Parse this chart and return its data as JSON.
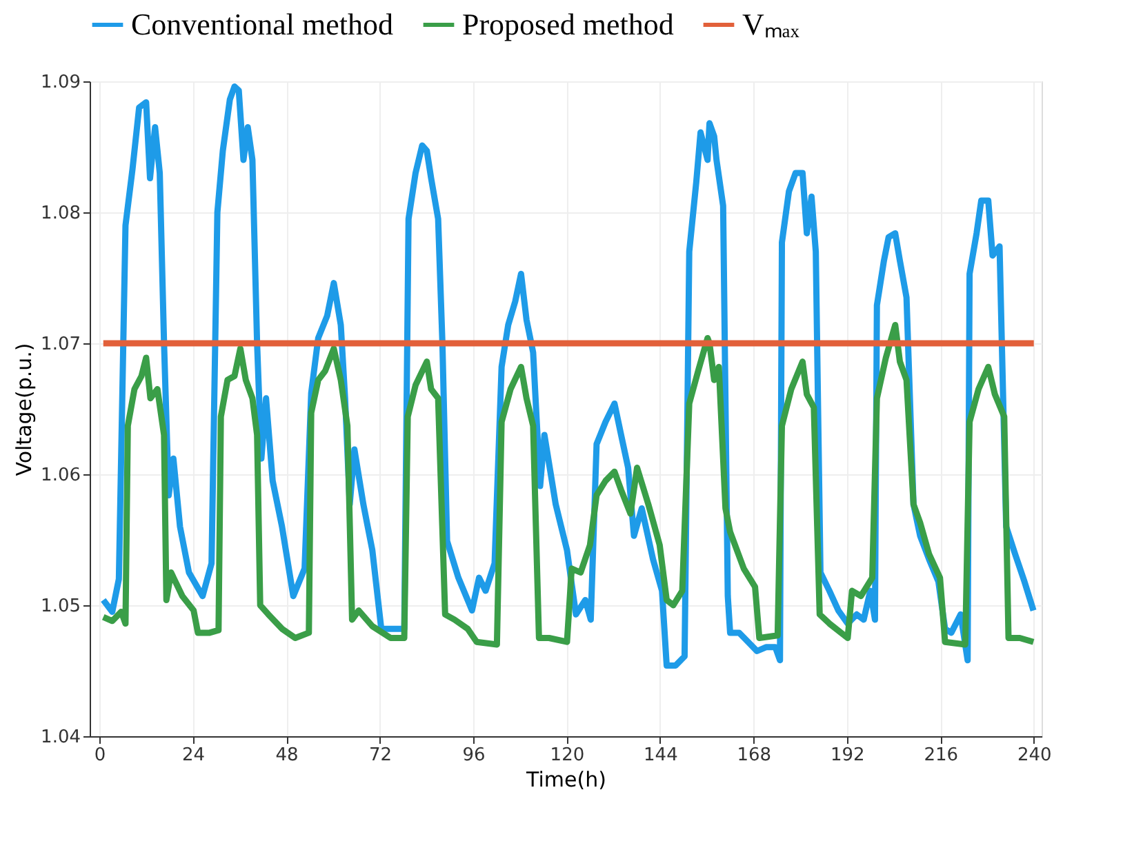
{
  "chart_data": {
    "type": "line",
    "xlabel": "Time(h)",
    "ylabel": "Voltage(p.u.)",
    "xlim": [
      -2.5,
      242
    ],
    "xticks": [
      0,
      24,
      48,
      72,
      96,
      120,
      144,
      168,
      192,
      216,
      240
    ],
    "ylim": [
      1.04,
      1.09
    ],
    "yticks": [
      1.04,
      1.05,
      1.06,
      1.07,
      1.08,
      1.09
    ],
    "grid": true,
    "legend": "top",
    "marker": "none",
    "line_style": "solid",
    "series": [
      {
        "name": "Conventional method",
        "color": "#1e9be8",
        "x": [
          1,
          3.3,
          5,
          6.7,
          8.5,
          10.2,
          12,
          13,
          14.3,
          15.5,
          16.6,
          17.8,
          19,
          20.7,
          23,
          26.5,
          28.8,
          30.3,
          31.7,
          33.5,
          34.7,
          35.8,
          37,
          38.1,
          39.3,
          40.5,
          41.6,
          42.8,
          44.5,
          46.9,
          49.8,
          52.7,
          54.4,
          56.2,
          58.5,
          60.2,
          62,
          63.1,
          64.3,
          65.5,
          67.8,
          70.1,
          72.4,
          75.9,
          78.3,
          79.4,
          81.2,
          82.9,
          84.1,
          85.2,
          87,
          88.1,
          89.3,
          92.2,
          95.7,
          97.5,
          99.2,
          101.5,
          103.3,
          105,
          106.8,
          108.3,
          109.7,
          111.4,
          113.2,
          114.3,
          117.2,
          120.1,
          122.4,
          124.8,
          126.2,
          127.7,
          130,
          132.3,
          134,
          135.8,
          137.3,
          139.3,
          142.2,
          144.5,
          145.7,
          148,
          150.3,
          151.5,
          153.3,
          154.4,
          156.2,
          156.7,
          157.9,
          158.5,
          160.2,
          161.4,
          162,
          164.3,
          166.6,
          168.9,
          171.2,
          173.6,
          174.8,
          175.3,
          177.1,
          178.8,
          180.6,
          181.7,
          182.9,
          184,
          185.2,
          187.5,
          189.8,
          192.2,
          194.5,
          196.3,
          198,
          199.2,
          199.7,
          201.5,
          202.7,
          204.4,
          205.6,
          207.3,
          209.1,
          210.8,
          213.1,
          215.5,
          217.2,
          218.8,
          221.2,
          223,
          223.5,
          225.3,
          226.5,
          228.3,
          229.4,
          231.2,
          232.9,
          235.2,
          237.6,
          239.9
        ],
        "values": [
          1.0504,
          1.0495,
          1.052,
          1.079,
          1.0833,
          1.088,
          1.0884,
          1.0826,
          1.0865,
          1.083,
          1.07,
          1.0584,
          1.0612,
          1.056,
          1.0525,
          1.0507,
          1.0532,
          1.08,
          1.0847,
          1.0886,
          1.0896,
          1.0893,
          1.084,
          1.0865,
          1.084,
          1.07,
          1.0612,
          1.0658,
          1.0595,
          1.056,
          1.0507,
          1.0528,
          1.0662,
          1.0704,
          1.0721,
          1.0746,
          1.0714,
          1.0658,
          1.0577,
          1.0619,
          1.0577,
          1.0542,
          1.0482,
          1.0482,
          1.0482,
          1.0795,
          1.083,
          1.0851,
          1.0847,
          1.0826,
          1.0795,
          1.07,
          1.0549,
          1.0521,
          1.0496,
          1.0521,
          1.0511,
          1.0532,
          1.0682,
          1.0714,
          1.0732,
          1.0753,
          1.0718,
          1.0693,
          1.0591,
          1.063,
          1.0577,
          1.0542,
          1.0493,
          1.0504,
          1.0489,
          1.0623,
          1.064,
          1.0654,
          1.063,
          1.0605,
          1.0553,
          1.0574,
          1.0535,
          1.0511,
          1.0454,
          1.0454,
          1.0461,
          1.077,
          1.0823,
          1.0861,
          1.084,
          1.0868,
          1.0858,
          1.084,
          1.0805,
          1.0507,
          1.0479,
          1.0479,
          1.0472,
          1.0465,
          1.0468,
          1.0468,
          1.0458,
          1.0777,
          1.0816,
          1.083,
          1.083,
          1.0784,
          1.0812,
          1.077,
          1.0525,
          1.0511,
          1.0496,
          1.0486,
          1.0493,
          1.0489,
          1.0511,
          1.0489,
          1.0729,
          1.0763,
          1.0781,
          1.0784,
          1.0763,
          1.0735,
          1.0577,
          1.0553,
          1.0535,
          1.0518,
          1.0482,
          1.0479,
          1.0493,
          1.0458,
          1.0753,
          1.0784,
          1.0809,
          1.0809,
          1.0767,
          1.0774,
          1.056,
          1.0539,
          1.0518,
          1.0496
        ]
      },
      {
        "name": "Proposed method",
        "color": "#3a9e48",
        "x": [
          1,
          3.3,
          5.6,
          6.7,
          7.3,
          9,
          10.8,
          12,
          13.1,
          14.9,
          16.6,
          17.2,
          18.4,
          21.3,
          24.2,
          25.3,
          28.3,
          30.6,
          31.2,
          32.9,
          34.7,
          36.2,
          37.6,
          39.3,
          40.5,
          41.3,
          43.4,
          46.9,
          50.3,
          53.8,
          54.4,
          56.2,
          58,
          60.2,
          62,
          63.7,
          64.9,
          66.6,
          70.1,
          74.8,
          78.3,
          79.2,
          81.2,
          84.1,
          85.2,
          87,
          88.8,
          91.2,
          94.6,
          96.9,
          102.1,
          103.3,
          105.6,
          108.3,
          109.7,
          111.4,
          112.9,
          115.5,
          120.1,
          121.3,
          123.6,
          126,
          127.7,
          130,
          132.3,
          134,
          136.4,
          138.1,
          141,
          143.9,
          145.7,
          147.4,
          149.7,
          151.5,
          153.8,
          156.2,
          156.7,
          157.9,
          159.1,
          160.8,
          162,
          165.5,
          168.4,
          169.5,
          174.2,
          175.3,
          177.7,
          180.6,
          181.7,
          183.5,
          185,
          187.5,
          192.2,
          193.3,
          195.6,
          198.5,
          199.7,
          202,
          204.4,
          205.6,
          207.3,
          209.1,
          210.8,
          213.1,
          215.9,
          217.2,
          222.4,
          223.5,
          225.8,
          228.3,
          230,
          232.4,
          233.5,
          236.4,
          239.9
        ],
        "values": [
          1.0491,
          1.0488,
          1.0495,
          1.0486,
          1.0637,
          1.0665,
          1.0675,
          1.0689,
          1.0658,
          1.0665,
          1.063,
          1.0504,
          1.0525,
          1.0507,
          1.0496,
          1.0479,
          1.0479,
          1.0481,
          1.0644,
          1.0672,
          1.0675,
          1.0696,
          1.0672,
          1.0658,
          1.063,
          1.05,
          1.0493,
          1.0482,
          1.0475,
          1.0479,
          1.0647,
          1.0672,
          1.0679,
          1.0696,
          1.0672,
          1.0637,
          1.0489,
          1.0496,
          1.0484,
          1.0475,
          1.0475,
          1.0644,
          1.0668,
          1.0686,
          1.0665,
          1.0658,
          1.0493,
          1.0489,
          1.0482,
          1.0472,
          1.047,
          1.064,
          1.0665,
          1.0682,
          1.0658,
          1.0637,
          1.0475,
          1.0475,
          1.0472,
          1.0528,
          1.0525,
          1.0546,
          1.0584,
          1.0595,
          1.0602,
          1.0588,
          1.057,
          1.0605,
          1.0577,
          1.0546,
          1.0504,
          1.05,
          1.0511,
          1.0654,
          1.0679,
          1.0704,
          1.07,
          1.0672,
          1.0682,
          1.0574,
          1.0556,
          1.0528,
          1.0514,
          1.0475,
          1.0477,
          1.0637,
          1.0665,
          1.0686,
          1.0661,
          1.0651,
          1.0493,
          1.0486,
          1.0475,
          1.0511,
          1.0507,
          1.0521,
          1.0658,
          1.0689,
          1.0714,
          1.0686,
          1.0672,
          1.0577,
          1.0563,
          1.0539,
          1.0521,
          1.0472,
          1.047,
          1.064,
          1.0665,
          1.0682,
          1.0661,
          1.0644,
          1.0475,
          1.0475,
          1.0472
        ]
      },
      {
        "name": "Vₘₐₓ",
        "color": "#e2603a",
        "x": [
          1,
          240
        ],
        "values": [
          1.07,
          1.07
        ]
      }
    ]
  }
}
